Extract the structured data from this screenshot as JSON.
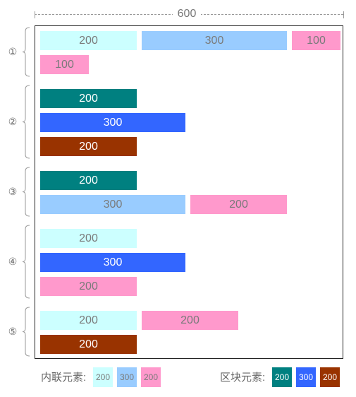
{
  "dimension": {
    "label": "600"
  },
  "groups": [
    {
      "num": "①",
      "rows": [
        [
          {
            "v": "200",
            "w": 200,
            "type": "inline",
            "color": "#ccffff"
          },
          {
            "v": "300",
            "w": 300,
            "type": "inline",
            "color": "#99ccff"
          },
          {
            "v": "100",
            "w": 100,
            "type": "inline",
            "color": "#ff99cc"
          }
        ],
        [
          {
            "v": "100",
            "w": 100,
            "type": "inline",
            "color": "#ff99cc"
          }
        ]
      ]
    },
    {
      "num": "②",
      "rows": [
        [
          {
            "v": "200",
            "w": 200,
            "type": "block",
            "color": "#008080"
          }
        ],
        [
          {
            "v": "300",
            "w": 300,
            "type": "block",
            "color": "#3366ff"
          }
        ],
        [
          {
            "v": "200",
            "w": 200,
            "type": "block",
            "color": "#993300"
          }
        ]
      ]
    },
    {
      "num": "③",
      "rows": [
        [
          {
            "v": "200",
            "w": 200,
            "type": "block",
            "color": "#008080"
          }
        ],
        [
          {
            "v": "300",
            "w": 300,
            "type": "inline",
            "color": "#99ccff"
          },
          {
            "v": "200",
            "w": 200,
            "type": "inline",
            "color": "#ff99cc"
          }
        ]
      ]
    },
    {
      "num": "④",
      "rows": [
        [
          {
            "v": "200",
            "w": 200,
            "type": "inline",
            "color": "#ccffff"
          }
        ],
        [
          {
            "v": "300",
            "w": 300,
            "type": "block",
            "color": "#3366ff"
          }
        ],
        [
          {
            "v": "200",
            "w": 200,
            "type": "inline",
            "color": "#ff99cc"
          }
        ]
      ]
    },
    {
      "num": "⑤",
      "rows": [
        [
          {
            "v": "200",
            "w": 200,
            "type": "inline",
            "color": "#ccffff"
          },
          {
            "v": "200",
            "w": 200,
            "type": "inline",
            "color": "#ff99cc"
          }
        ],
        [
          {
            "v": "200",
            "w": 200,
            "type": "block",
            "color": "#993300"
          }
        ]
      ]
    }
  ],
  "legend": {
    "inline_label": "内联元素:",
    "inline_items": [
      {
        "v": "200",
        "color": "#ccffff"
      },
      {
        "v": "300",
        "color": "#99ccff"
      },
      {
        "v": "200",
        "color": "#ff99cc"
      }
    ],
    "block_label": "区块元素:",
    "block_items": [
      {
        "v": "200",
        "color": "#008080"
      },
      {
        "v": "300",
        "color": "#3366ff"
      },
      {
        "v": "200",
        "color": "#993300"
      }
    ]
  }
}
